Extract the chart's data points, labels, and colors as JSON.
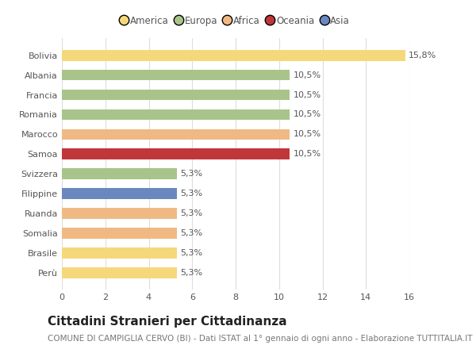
{
  "categories": [
    "Bolivia",
    "Albania",
    "Francia",
    "Romania",
    "Marocco",
    "Samoa",
    "Svizzera",
    "Filippine",
    "Ruanda",
    "Somalia",
    "Brasile",
    "Perù"
  ],
  "values": [
    15.8,
    10.5,
    10.5,
    10.5,
    10.5,
    10.5,
    5.3,
    5.3,
    5.3,
    5.3,
    5.3,
    5.3
  ],
  "bar_colors": [
    "#f5d87a",
    "#a8c48a",
    "#a8c48a",
    "#a8c48a",
    "#f0b984",
    "#c0373a",
    "#a8c48a",
    "#6b87c0",
    "#f0b984",
    "#f0b984",
    "#f5d87a",
    "#f5d87a"
  ],
  "continent_labels": [
    "America",
    "Europa",
    "Africa",
    "Oceania",
    "Asia"
  ],
  "continent_colors": [
    "#f5d87a",
    "#a8c48a",
    "#f0b984",
    "#c0373a",
    "#6b87c0"
  ],
  "title": "Cittadini Stranieri per Cittadinanza",
  "subtitle": "COMUNE DI CAMPIGLIA CERVO (BI) - Dati ISTAT al 1° gennaio di ogni anno - Elaborazione TUTTITALIA.IT",
  "xlim": [
    0,
    16
  ],
  "xticks": [
    0,
    2,
    4,
    6,
    8,
    10,
    12,
    14,
    16
  ],
  "background_color": "#ffffff",
  "grid_color": "#dddddd",
  "title_fontsize": 11,
  "subtitle_fontsize": 7.5,
  "label_fontsize": 8,
  "tick_fontsize": 8,
  "legend_fontsize": 8.5
}
